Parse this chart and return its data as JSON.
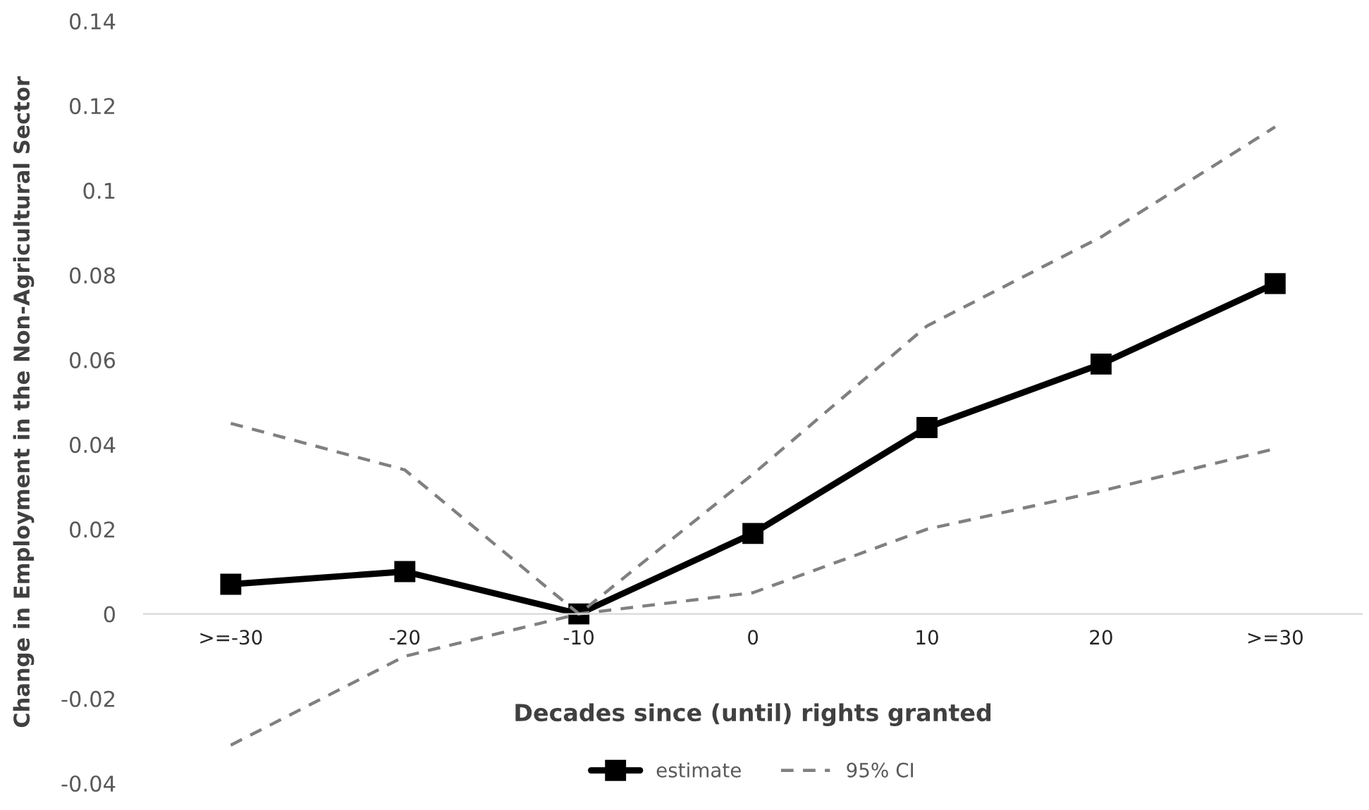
{
  "chart_data": {
    "type": "line",
    "xlabel": "Decades since (until) rights granted",
    "ylabel": "Change in Employment in the Non-Agricultural Sector",
    "categories": [
      ">=-30",
      "-20",
      "-10",
      "0",
      "10",
      "20",
      ">=30"
    ],
    "series": [
      {
        "name": "estimate",
        "color": "#000000",
        "values": [
          0.007,
          0.01,
          0.0,
          0.019,
          0.044,
          0.059,
          0.078
        ],
        "marker": "square",
        "line_style": "solid"
      },
      {
        "name": "95% CI",
        "color": "#808080",
        "values": [
          0.045,
          0.034,
          0.0,
          0.033,
          0.068,
          0.089,
          0.115
        ],
        "marker": "none",
        "line_style": "dashed"
      },
      {
        "color": "#808080",
        "values": [
          -0.031,
          -0.01,
          0.0,
          0.005,
          0.02,
          0.029,
          0.039
        ],
        "marker": "none",
        "line_style": "dashed"
      }
    ],
    "ylim": [
      -0.04,
      0.14
    ],
    "yticks": [
      -0.04,
      -0.02,
      0,
      0.02,
      0.04,
      0.06,
      0.08,
      0.1,
      0.12,
      0.14
    ],
    "grid": false,
    "legend": "bottom"
  }
}
